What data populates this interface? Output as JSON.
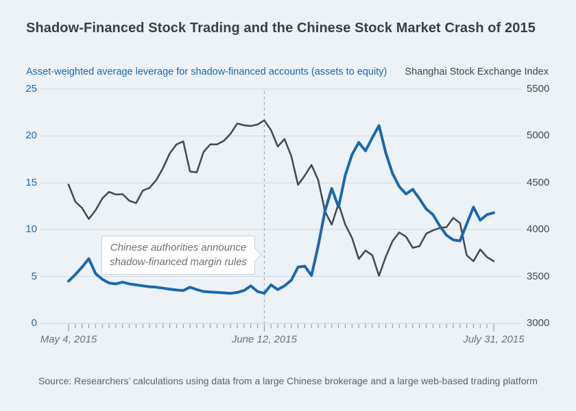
{
  "chart": {
    "title": "Shadow-Financed Stock Trading and the Chinese Stock Market Crash of 2015",
    "source": "Source: Researchers’ calculations using data from a large Chinese brokerage and a large web-based trading platform",
    "annotation": {
      "line1": "Chinese authorities announce",
      "line2": "shadow-financed margin rules"
    }
  },
  "chart_data": {
    "type": "line",
    "title": "Shadow-Financed Stock Trading and the Chinese Stock Market Crash of 2015",
    "grid": "on",
    "legend_position": "none",
    "colors": {
      "background": "#edf2f7",
      "grid": "#cfd6dd",
      "axis_ticks": "#8d939a",
      "event_line": "#9aa1a8",
      "leverage_blue": "#1a69ad",
      "index_gray": "#474c52"
    },
    "left_axis": {
      "title": "Asset-weighted average leverage for shadow-financed accounts (assets to equity)",
      "ticks": [
        25,
        20,
        15,
        10,
        5,
        0
      ],
      "range": [
        0,
        25
      ]
    },
    "right_axis": {
      "title": "Shanghai Stock Exchange Index",
      "ticks": [
        5500,
        5000,
        4500,
        4000,
        3500,
        3000
      ],
      "range": [
        3000,
        5500
      ]
    },
    "x_axis": {
      "unit": "trading day (2015)",
      "labels": [
        {
          "text": "May 4, 2015",
          "day": 0
        },
        {
          "text": "June 12, 2015",
          "day": 29
        },
        {
          "text": "July 31, 2015",
          "day": 63
        }
      ]
    },
    "event_day": 29,
    "dates": [
      "May 4",
      "May 5",
      "May 6",
      "May 7",
      "May 8",
      "May 11",
      "May 12",
      "May 13",
      "May 14",
      "May 15",
      "May 18",
      "May 19",
      "May 20",
      "May 21",
      "May 22",
      "May 25",
      "May 26",
      "May 27",
      "May 28",
      "May 29",
      "Jun 1",
      "Jun 2",
      "Jun 3",
      "Jun 4",
      "Jun 5",
      "Jun 8",
      "Jun 9",
      "Jun 10",
      "Jun 11",
      "Jun 12",
      "Jun 15",
      "Jun 16",
      "Jun 17",
      "Jun 18",
      "Jun 19",
      "Jun 23",
      "Jun 24",
      "Jun 25",
      "Jun 26",
      "Jun 29",
      "Jun 30",
      "Jul 1",
      "Jul 2",
      "Jul 3",
      "Jul 6",
      "Jul 7",
      "Jul 8",
      "Jul 9",
      "Jul 10",
      "Jul 13",
      "Jul 14",
      "Jul 15",
      "Jul 16",
      "Jul 17",
      "Jul 20",
      "Jul 21",
      "Jul 22",
      "Jul 23",
      "Jul 24",
      "Jul 27",
      "Jul 28",
      "Jul 29",
      "Jul 30",
      "Jul 31"
    ],
    "series": [
      {
        "id": "sse-index-line",
        "name": "Shanghai Stock Exchange Index",
        "axis": "right",
        "color": "#474c52",
        "values": [
          4480,
          4298,
          4230,
          4113,
          4206,
          4333,
          4402,
          4375,
          4378,
          4308,
          4283,
          4417,
          4446,
          4529,
          4657,
          4814,
          4910,
          4941,
          4620,
          4611,
          4828,
          4910,
          4909,
          4947,
          5023,
          5132,
          5113,
          5106,
          5121,
          5166,
          5062,
          4887,
          4967,
          4785,
          4478,
          4576,
          4690,
          4528,
          4193,
          4053,
          4277,
          4054,
          3912,
          3687,
          3776,
          3727,
          3507,
          3709,
          3877,
          3970,
          3924,
          3806,
          3823,
          3957,
          3992,
          4018,
          4026,
          4124,
          4071,
          3726,
          3663,
          3789,
          3706,
          3664
        ]
      },
      {
        "id": "leverage-line",
        "name": "Asset-weighted average leverage for shadow-financed accounts",
        "axis": "left",
        "color": "#1a69ad",
        "values": [
          4.5,
          5.2,
          6.0,
          6.9,
          5.3,
          4.7,
          4.3,
          4.2,
          4.4,
          4.2,
          4.1,
          4.0,
          3.9,
          3.85,
          3.75,
          3.65,
          3.55,
          3.5,
          3.85,
          3.6,
          3.4,
          3.35,
          3.3,
          3.25,
          3.2,
          3.3,
          3.5,
          4.0,
          3.4,
          3.2,
          4.1,
          3.6,
          4.0,
          4.6,
          6.0,
          6.1,
          5.1,
          8.3,
          12.0,
          14.4,
          12.4,
          15.8,
          18.0,
          19.3,
          18.4,
          19.8,
          21.1,
          18.2,
          16.0,
          14.6,
          13.8,
          14.3,
          13.3,
          12.2,
          11.6,
          10.4,
          9.4,
          8.9,
          8.8,
          10.6,
          12.4,
          11.0,
          11.6,
          11.8
        ]
      }
    ]
  }
}
